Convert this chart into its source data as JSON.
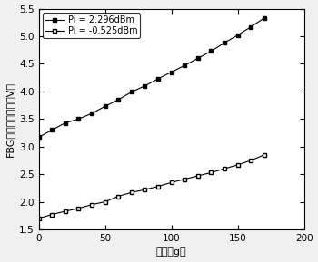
{
  "series1_label": "Pi = 2.296dBm",
  "series2_label": "Pi = -0.525dBm",
  "x_values": [
    0,
    10,
    20,
    30,
    40,
    50,
    60,
    70,
    80,
    90,
    100,
    110,
    120,
    130,
    140,
    150,
    160,
    170
  ],
  "y1_values": [
    3.17,
    3.3,
    3.43,
    3.5,
    3.6,
    3.73,
    3.85,
    3.99,
    4.1,
    4.23,
    4.35,
    4.47,
    4.6,
    4.73,
    4.88,
    5.02,
    5.17,
    5.33
  ],
  "y2_values": [
    1.7,
    1.77,
    1.83,
    1.88,
    1.95,
    2.0,
    2.1,
    2.17,
    2.22,
    2.28,
    2.35,
    2.41,
    2.47,
    2.53,
    2.6,
    2.67,
    2.75,
    2.85
  ],
  "xlabel": "挂重（g）",
  "ylabel": "FBG反射输出电压（V）",
  "xlim": [
    0,
    200
  ],
  "ylim": [
    1.5,
    5.5
  ],
  "xticks": [
    0,
    50,
    100,
    150,
    200
  ],
  "yticks": [
    1.5,
    2.0,
    2.5,
    3.0,
    3.5,
    4.0,
    4.5,
    5.0,
    5.5
  ],
  "legend_loc": "upper left",
  "figsize": [
    3.5,
    2.89
  ],
  "dpi": 100
}
